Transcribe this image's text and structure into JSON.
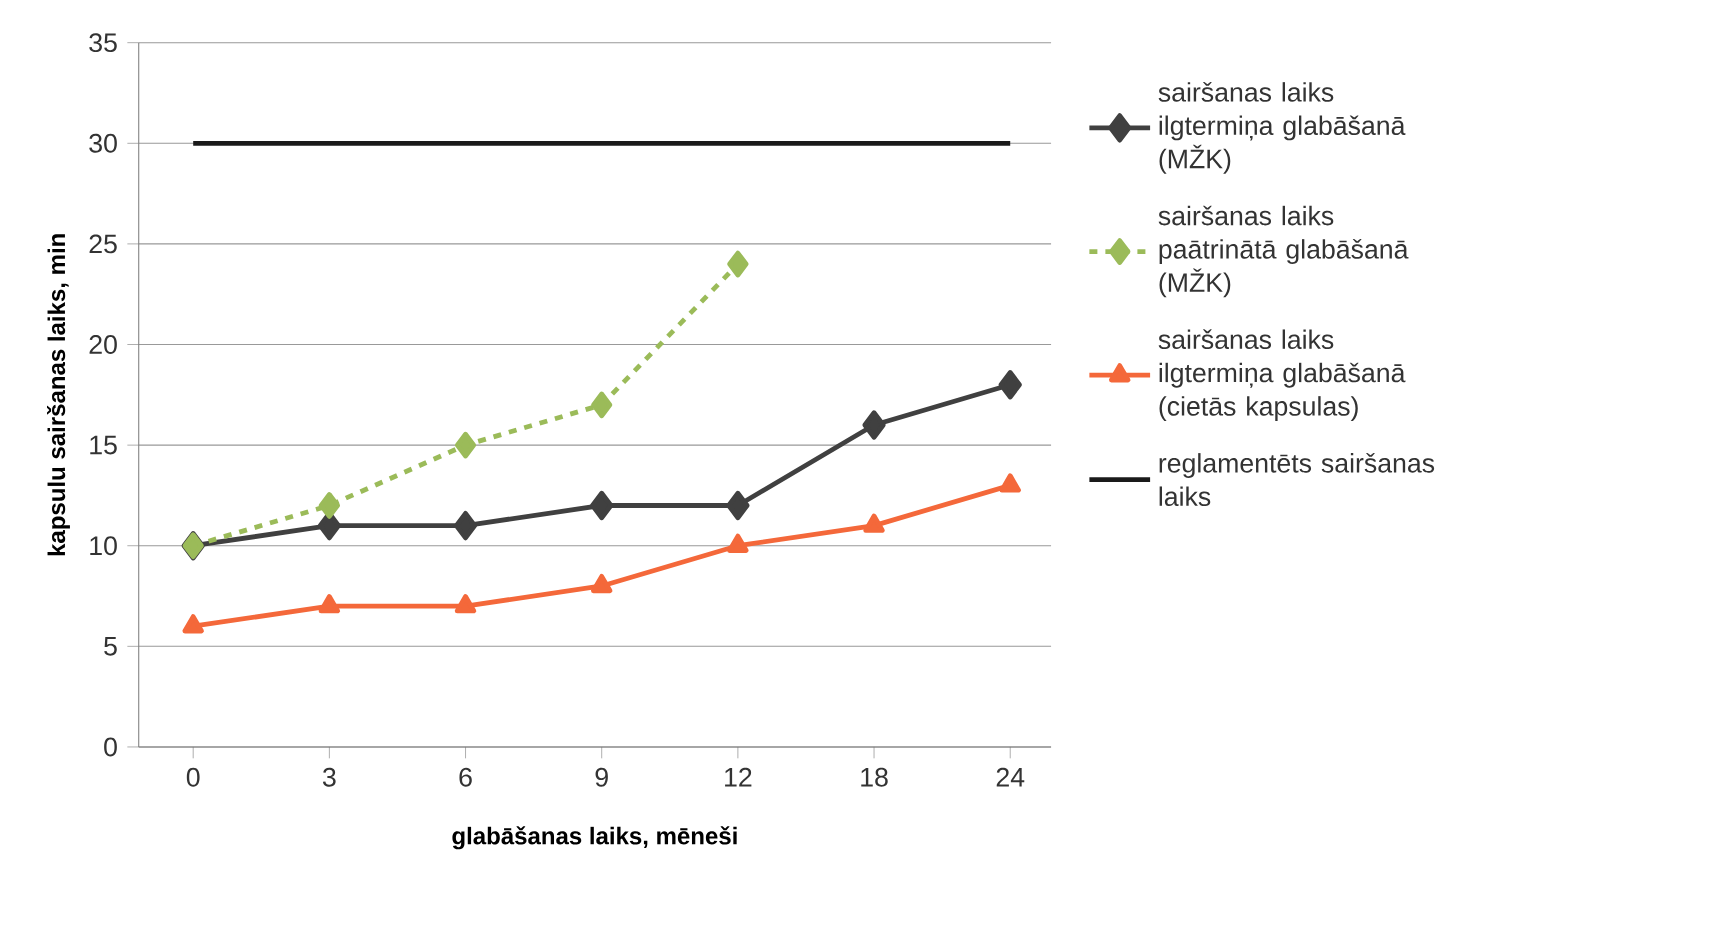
{
  "chart_data": {
    "type": "line",
    "xlabel": "glabāšanas laiks, mēneši",
    "ylabel": "kapsulu sairšanas laiks, min",
    "categories": [
      "0",
      "3",
      "6",
      "9",
      "12",
      "18",
      "24"
    ],
    "series": [
      {
        "name": "sairšanas laiks ilgtermiņa glabāšanā (MŽK)",
        "color": "#404040",
        "marker": "diamond",
        "line_style": "solid",
        "values": [
          10,
          11,
          11,
          12,
          12,
          16,
          18
        ]
      },
      {
        "name": "sairšanas laiks paātrinātā glabāšanā (MŽK)",
        "color": "#9bbb59",
        "marker": "diamond",
        "line_style": "dashed",
        "values": [
          10,
          12,
          15,
          17,
          24,
          null,
          null
        ]
      },
      {
        "name": "sairšanas laiks ilgtermiņa glabāšanā (cietās kapsulas)",
        "color": "#f4683a",
        "marker": "triangle",
        "line_style": "solid",
        "values": [
          6,
          7,
          7,
          8,
          10,
          11,
          13
        ]
      },
      {
        "name": "reglamentēts sairšanas laiks",
        "color": "#1a1a1a",
        "marker": "none",
        "line_style": "solid",
        "values": [
          30,
          30,
          30,
          30,
          30,
          30,
          30
        ]
      }
    ],
    "ylim": [
      0,
      35
    ],
    "yticks": [
      0,
      5,
      10,
      15,
      20,
      25,
      30,
      35
    ],
    "grid": "y",
    "legend": "right"
  }
}
